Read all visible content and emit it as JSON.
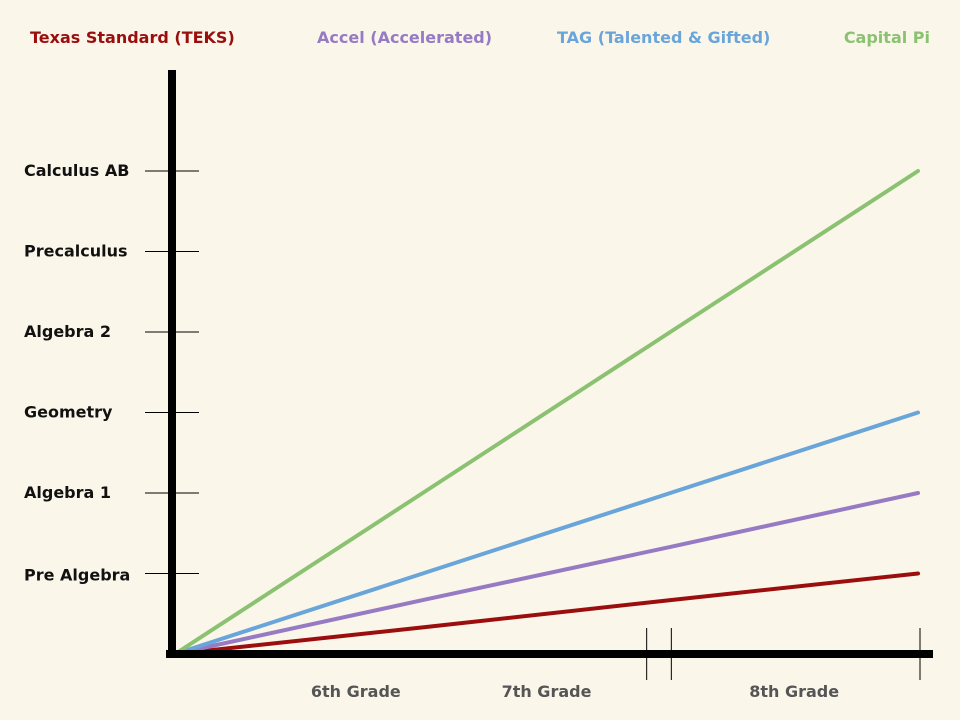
{
  "chart_data": {
    "type": "line",
    "title": "",
    "xlabel": "",
    "ylabel": "",
    "categories": [
      "6th Grade",
      "7th Grade",
      "8th Grade"
    ],
    "y_levels": [
      "Pre Algebra",
      "Algebra 1",
      "Geometry",
      "Algebra 2",
      "Precalculus",
      "Calculus AB"
    ],
    "xlim": [
      0,
      3
    ],
    "ylim": [
      0,
      6
    ],
    "grid": false,
    "legend": "top",
    "series": [
      {
        "name": "Texas Standard (TEKS)",
        "color": "#9b0e0e",
        "points": [
          [
            0,
            0
          ],
          [
            1,
            0.33
          ],
          [
            2,
            0.67
          ],
          [
            3,
            1
          ]
        ]
      },
      {
        "name": "Accel (Accelerated)",
        "color": "#967bc4",
        "points": [
          [
            0,
            0
          ],
          [
            1,
            0.67
          ],
          [
            2,
            1.33
          ],
          [
            3,
            2
          ]
        ]
      },
      {
        "name": "TAG (Talented & Gifted)",
        "color": "#6aa5da",
        "points": [
          [
            0,
            0
          ],
          [
            1,
            1
          ],
          [
            2,
            2
          ],
          [
            3,
            3
          ]
        ]
      },
      {
        "name": "Capital Pi",
        "color": "#8bc271",
        "points": [
          [
            0,
            0
          ],
          [
            1,
            2
          ],
          [
            2,
            4
          ],
          [
            3,
            6
          ]
        ]
      }
    ]
  }
}
